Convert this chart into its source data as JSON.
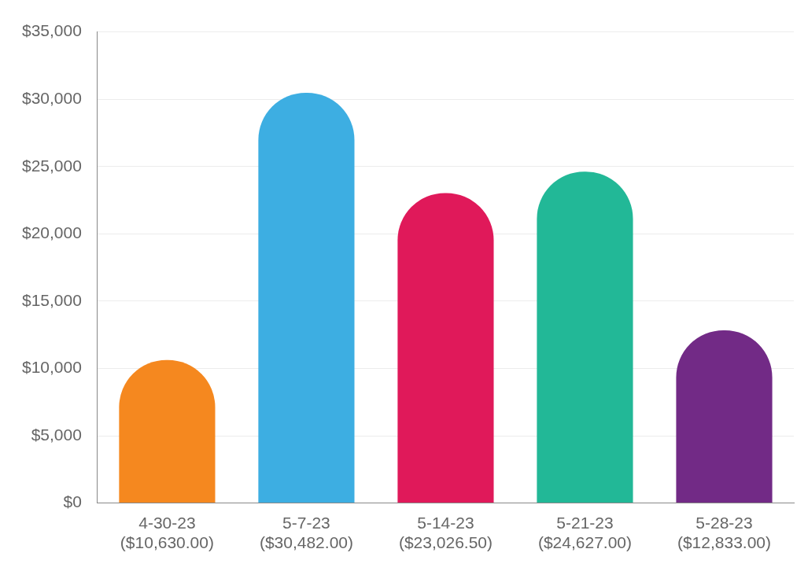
{
  "chart_data": {
    "type": "bar",
    "categories": [
      "4-30-23",
      "5-7-23",
      "5-14-23",
      "5-21-23",
      "5-28-23"
    ],
    "values": [
      10630,
      30482,
      23026.5,
      24627,
      12833
    ],
    "colors": [
      "#f5881f",
      "#3daee2",
      "#e0195a",
      "#22b897",
      "#722a86"
    ],
    "value_labels": [
      "($10,630.00)",
      "($30,482.00)",
      "($23,026.50)",
      "($24,627.00)",
      "($12,833.00)"
    ],
    "ylim": [
      0,
      35000
    ],
    "yticks": [
      {
        "value": 0,
        "label": "$0"
      },
      {
        "value": 5000,
        "label": "$5,000"
      },
      {
        "value": 10000,
        "label": "$10,000"
      },
      {
        "value": 15000,
        "label": "$15,000"
      },
      {
        "value": 20000,
        "label": "$20,000"
      },
      {
        "value": 25000,
        "label": "$25,000"
      },
      {
        "value": 30000,
        "label": "$30,000"
      },
      {
        "value": 35000,
        "label": "$35,000"
      }
    ],
    "grid": "y",
    "legend": false
  }
}
